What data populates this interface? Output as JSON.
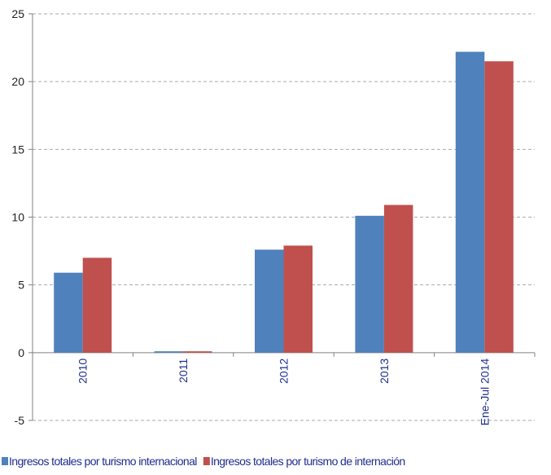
{
  "chart_data": {
    "type": "bar",
    "categories": [
      "2010",
      "2011",
      "2012",
      "2013",
      "Ene-Jul 2014"
    ],
    "series": [
      {
        "name": "Ingresos totales por turismo internacional",
        "color": "#4f81bd",
        "values": [
          5.9,
          0.1,
          7.6,
          10.1,
          22.2
        ]
      },
      {
        "name": "Ingresos totales por turismo de internación",
        "color": "#c0504d",
        "values": [
          7.0,
          0.1,
          7.9,
          10.9,
          21.5
        ]
      }
    ],
    "ylim": [
      -5,
      25
    ],
    "yticks": [
      -5,
      0,
      5,
      10,
      15,
      20,
      25
    ],
    "grid": true,
    "legend": "bottom"
  }
}
